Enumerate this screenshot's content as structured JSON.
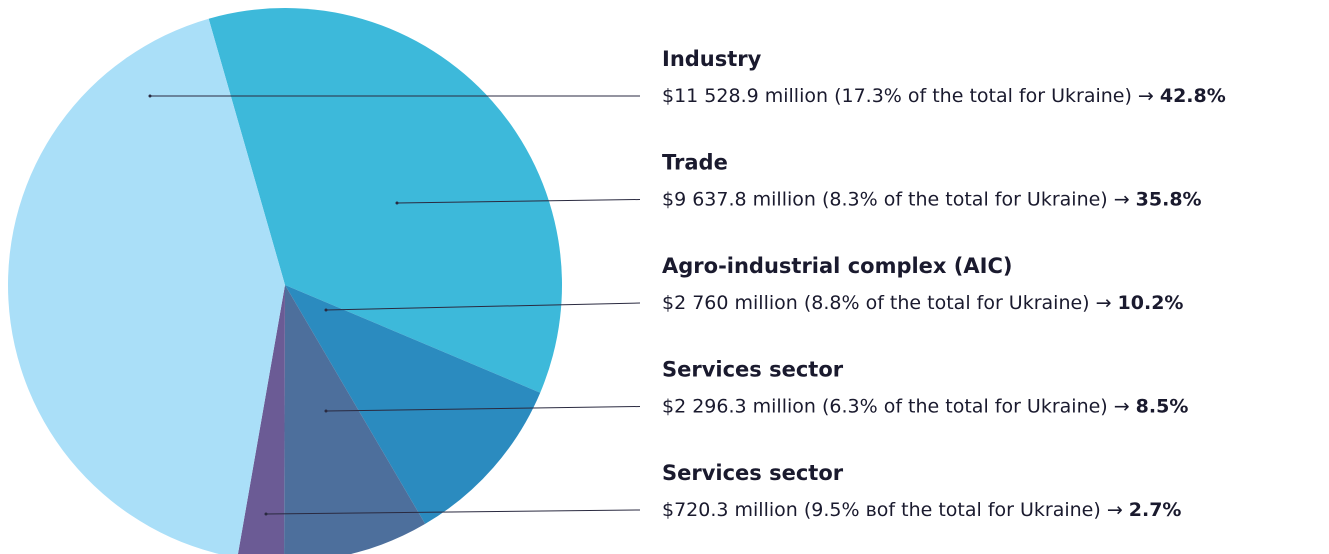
{
  "chart_data": {
    "type": "pie",
    "categories": [
      "Trade",
      "Agro-industrial complex (AIC)",
      "Services sector",
      "Services sector",
      "Industry"
    ],
    "details": [
      "$9 637.8 million (8.3% of the total for Ukraine) →",
      "$2 760 million (8.8% of the total for Ukraine) →",
      "$2 296.3 million (6.3% of the total for Ukraine) →",
      "$720.3 million (9.5% вof the total for Ukraine) →",
      "$11 528.9 million (17.3% of the total for Ukraine) →"
    ],
    "values": [
      35.8,
      10.2,
      8.5,
      2.7,
      42.8
    ],
    "value_labels": [
      "35.8%",
      "10.2%",
      "8.5%",
      "2.7%",
      "42.8%"
    ],
    "colors": [
      "#3db9da",
      "#2b8bbf",
      "#4d6f9c",
      "#6b5b95",
      "#aadff8"
    ]
  }
}
